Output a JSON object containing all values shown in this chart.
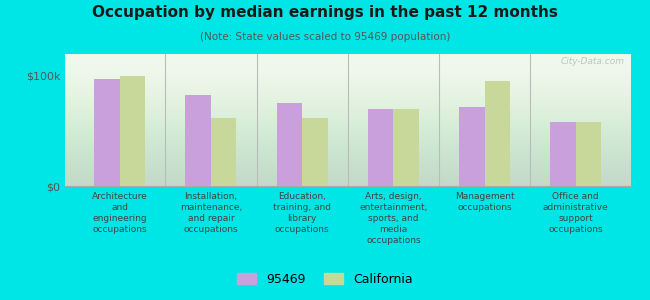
{
  "title": "Occupation by median earnings in the past 12 months",
  "subtitle": "(Note: State values scaled to 95469 population)",
  "background_outer": "#00e5e5",
  "watermark": "City-Data.com",
  "categories": [
    "Architecture\nand\nengineering\noccupations",
    "Installation,\nmaintenance,\nand repair\noccupations",
    "Education,\ntraining, and\nlibrary\noccupations",
    "Arts, design,\nentertainment,\nsports, and\nmedia\noccupations",
    "Management\noccupations",
    "Office and\nadministrative\nsupport\noccupations"
  ],
  "values_95469": [
    97000,
    83000,
    75000,
    70000,
    72000,
    58000
  ],
  "values_california": [
    100000,
    62000,
    62000,
    70000,
    95000,
    58000
  ],
  "color_95469": "#c9a0dc",
  "color_california": "#c8d89a",
  "ylim": [
    0,
    120000
  ],
  "yticks": [
    0,
    100000
  ],
  "ytick_labels": [
    "$0",
    "$100k"
  ],
  "legend_labels": [
    "95469",
    "California"
  ],
  "bar_width": 0.28
}
